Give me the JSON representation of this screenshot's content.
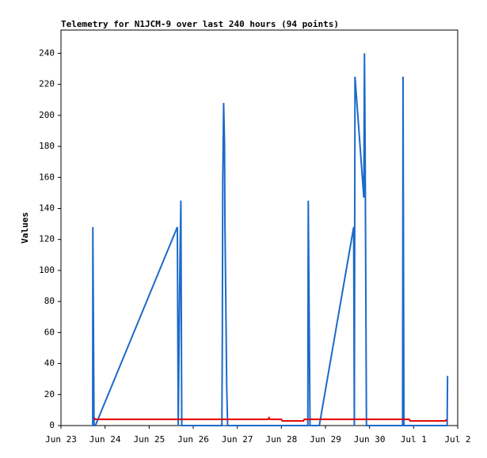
{
  "chart_data": {
    "type": "line",
    "title": "Telemetry for N1JCM-9 over last 240 hours (94 points)",
    "ylabel": "Values",
    "xlim": [
      0,
      9
    ],
    "ylim": [
      0,
      255
    ],
    "xticks": [
      {
        "value": 0,
        "label": "Jun 23"
      },
      {
        "value": 1,
        "label": "Jun 24"
      },
      {
        "value": 2,
        "label": "Jun 25"
      },
      {
        "value": 3,
        "label": "Jun 26"
      },
      {
        "value": 4,
        "label": "Jun 27"
      },
      {
        "value": 5,
        "label": "Jun 28"
      },
      {
        "value": 6,
        "label": "Jun 29"
      },
      {
        "value": 7,
        "label": "Jun 30"
      },
      {
        "value": 8,
        "label": "Jul 1"
      },
      {
        "value": 9,
        "label": "Jul 2"
      }
    ],
    "yticks": [
      0,
      20,
      40,
      60,
      80,
      100,
      120,
      140,
      160,
      180,
      200,
      220,
      240
    ],
    "series": [
      {
        "color": "#1c6ac9",
        "x": [
          0.72,
          0.723,
          0.75,
          0.78,
          2.64,
          2.66,
          2.7,
          2.72,
          2.74,
          3.65,
          3.66,
          3.67,
          3.69,
          3.71,
          3.72,
          3.74,
          3.76,
          3.78,
          5.6,
          5.61,
          5.63,
          5.65,
          5.86,
          6.64,
          6.655,
          6.67,
          6.87,
          6.885,
          6.9,
          6.92,
          6.93,
          7.75,
          7.76,
          7.78,
          8.76,
          8.77
        ],
        "values": [
          0,
          128,
          0,
          0,
          128,
          0,
          108,
          145,
          0,
          0,
          52,
          157,
          208,
          182,
          130,
          78,
          25,
          0,
          0,
          145,
          73,
          0,
          0,
          128,
          0,
          225,
          147,
          240,
          180,
          60,
          0,
          0,
          225,
          0,
          0,
          32
        ]
      },
      {
        "color": "#e00000",
        "x": [
          0.75,
          0.78,
          4.7,
          4.72,
          4.74,
          5.0,
          5.02,
          5.5,
          5.52,
          7.9,
          7.92,
          8.72,
          8.75
        ],
        "values": [
          5,
          4,
          4,
          5,
          4,
          4,
          3,
          3,
          4,
          4,
          3,
          3,
          4
        ]
      }
    ]
  }
}
